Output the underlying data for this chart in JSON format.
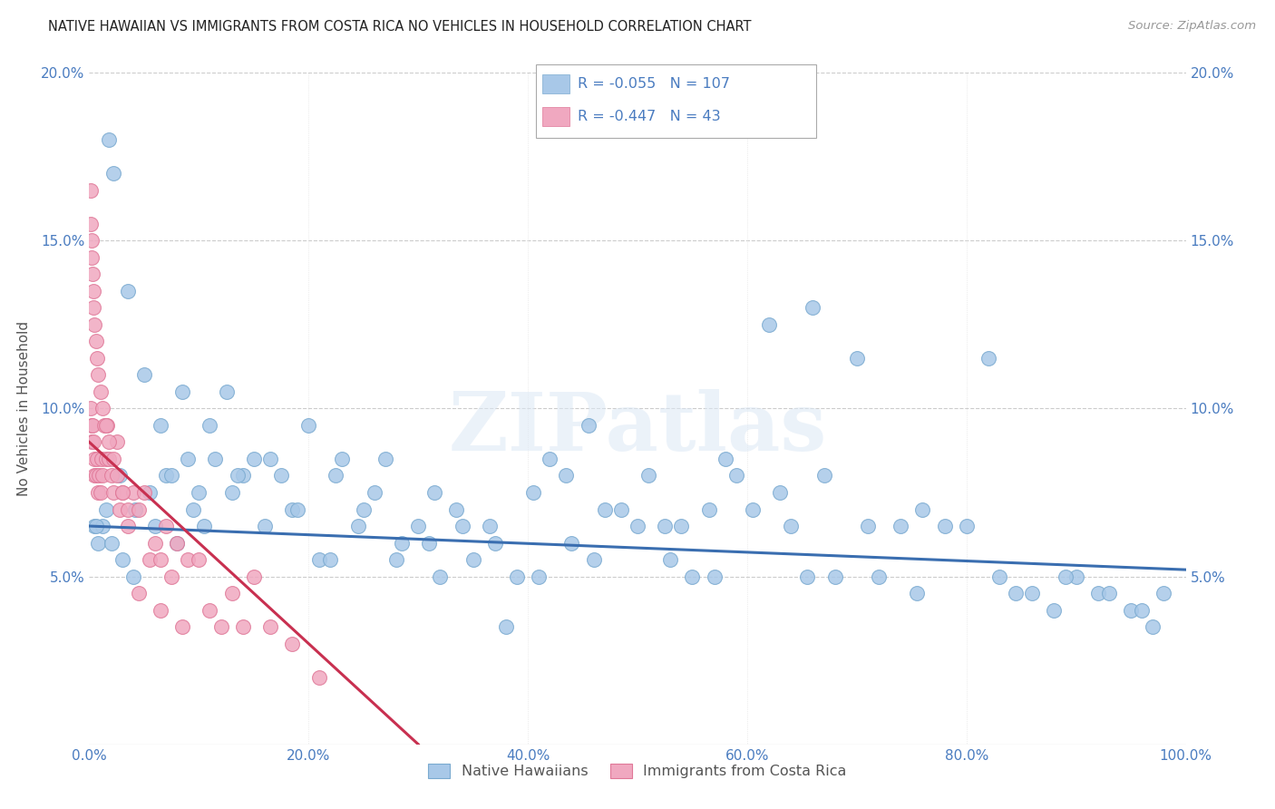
{
  "title": "NATIVE HAWAIIAN VS IMMIGRANTS FROM COSTA RICA NO VEHICLES IN HOUSEHOLD CORRELATION CHART",
  "source": "Source: ZipAtlas.com",
  "ylabel": "No Vehicles in Household",
  "xlim": [
    0.0,
    100.0
  ],
  "ylim": [
    0.0,
    20.0
  ],
  "xtick_vals": [
    0,
    20,
    40,
    60,
    80,
    100
  ],
  "ytick_vals": [
    0,
    5,
    10,
    15,
    20
  ],
  "r_blue": -0.055,
  "n_blue": 107,
  "r_pink": -0.447,
  "n_pink": 43,
  "color_blue": "#a8c8e8",
  "color_pink": "#f0a8c0",
  "edge_blue": "#7aaad0",
  "edge_pink": "#e07898",
  "line_color_blue": "#3a6eb0",
  "line_color_pink": "#c83050",
  "watermark_zip": "ZIP",
  "watermark_atlas": "atlas",
  "legend_label_blue": "Native Hawaiians",
  "legend_label_pink": "Immigrants from Costa Rica",
  "blue_x": [
    1.8,
    2.2,
    3.5,
    5.0,
    6.5,
    8.5,
    10.0,
    12.5,
    14.0,
    0.5,
    0.8,
    1.2,
    2.0,
    3.0,
    4.0,
    5.5,
    6.0,
    7.0,
    8.0,
    9.5,
    10.5,
    11.5,
    13.0,
    15.0,
    16.0,
    17.5,
    18.5,
    20.0,
    21.0,
    22.5,
    23.0,
    24.5,
    26.0,
    27.0,
    28.5,
    30.0,
    31.0,
    32.0,
    33.5,
    35.0,
    36.5,
    38.0,
    39.0,
    40.5,
    42.0,
    43.5,
    44.0,
    45.5,
    47.0,
    48.5,
    50.0,
    51.0,
    52.5,
    54.0,
    55.0,
    56.5,
    58.0,
    59.0,
    60.5,
    62.0,
    64.0,
    65.5,
    66.0,
    68.0,
    70.0,
    72.0,
    74.0,
    75.5,
    78.0,
    80.0,
    82.0,
    84.5,
    88.0,
    90.0,
    92.0,
    95.0,
    97.0,
    0.6,
    1.5,
    2.8,
    4.2,
    7.5,
    9.0,
    11.0,
    13.5,
    16.5,
    19.0,
    22.0,
    25.0,
    28.0,
    31.5,
    34.0,
    37.0,
    41.0,
    46.0,
    53.0,
    57.0,
    63.0,
    67.0,
    71.0,
    76.0,
    83.0,
    86.0,
    89.0,
    93.0,
    96.0,
    98.0
  ],
  "blue_y": [
    18.0,
    17.0,
    13.5,
    11.0,
    9.5,
    10.5,
    7.5,
    10.5,
    8.0,
    6.5,
    6.0,
    6.5,
    6.0,
    5.5,
    5.0,
    7.5,
    6.5,
    8.0,
    6.0,
    7.0,
    6.5,
    8.5,
    7.5,
    8.5,
    6.5,
    8.0,
    7.0,
    9.5,
    5.5,
    8.0,
    8.5,
    6.5,
    7.5,
    8.5,
    6.0,
    6.5,
    6.0,
    5.0,
    7.0,
    5.5,
    6.5,
    3.5,
    5.0,
    7.5,
    8.5,
    8.0,
    6.0,
    9.5,
    7.0,
    7.0,
    6.5,
    8.0,
    6.5,
    6.5,
    5.0,
    7.0,
    8.5,
    8.0,
    7.0,
    12.5,
    6.5,
    5.0,
    13.0,
    5.0,
    11.5,
    5.0,
    6.5,
    4.5,
    6.5,
    6.5,
    11.5,
    4.5,
    4.0,
    5.0,
    4.5,
    4.0,
    3.5,
    6.5,
    7.0,
    8.0,
    7.0,
    8.0,
    8.5,
    9.5,
    8.0,
    8.5,
    7.0,
    5.5,
    7.0,
    5.5,
    7.5,
    6.5,
    6.0,
    5.0,
    5.5,
    5.5,
    5.0,
    7.5,
    8.0,
    6.5,
    7.0,
    5.0,
    4.5,
    5.0,
    4.5,
    4.0,
    4.5
  ],
  "pink_x": [
    0.15,
    0.2,
    0.25,
    0.3,
    0.4,
    0.45,
    0.5,
    0.6,
    0.7,
    0.8,
    0.9,
    1.0,
    1.1,
    1.2,
    1.4,
    1.5,
    1.6,
    1.8,
    2.0,
    2.2,
    2.5,
    2.8,
    3.0,
    3.5,
    4.0,
    4.5,
    5.0,
    5.5,
    6.0,
    6.5,
    7.0,
    7.5,
    8.0,
    9.0,
    10.0,
    11.0,
    12.0,
    13.0,
    14.0,
    15.0,
    16.5,
    18.5,
    21.0
  ],
  "pink_y": [
    10.0,
    9.5,
    9.0,
    9.5,
    9.0,
    8.5,
    8.0,
    8.0,
    8.5,
    7.5,
    8.0,
    7.5,
    8.5,
    8.0,
    9.5,
    8.5,
    9.5,
    8.5,
    8.0,
    7.5,
    9.0,
    7.0,
    7.5,
    7.0,
    7.5,
    7.0,
    7.5,
    5.5,
    6.0,
    5.5,
    6.5,
    5.0,
    6.0,
    5.5,
    5.5,
    4.0,
    3.5,
    4.5,
    3.5,
    5.0,
    3.5,
    3.0,
    2.0
  ],
  "pink_extra_x": [
    0.1,
    0.15,
    0.2,
    0.25,
    0.3,
    0.35,
    0.4,
    0.5,
    0.6,
    0.7,
    0.8,
    1.0,
    1.2,
    1.5,
    1.8,
    2.2,
    2.5,
    3.0,
    3.5,
    4.5,
    6.5,
    8.5
  ],
  "pink_extra_y": [
    16.5,
    15.5,
    15.0,
    14.5,
    14.0,
    13.5,
    13.0,
    12.5,
    12.0,
    11.5,
    11.0,
    10.5,
    10.0,
    9.5,
    9.0,
    8.5,
    8.0,
    7.5,
    6.5,
    4.5,
    4.0,
    3.5
  ],
  "blue_line_x0": 0,
  "blue_line_x1": 100,
  "blue_line_y0": 6.5,
  "blue_line_y1": 5.2,
  "pink_line_x0": 0,
  "pink_line_x1": 30,
  "pink_line_y0": 9.0,
  "pink_line_y1": 0.0
}
